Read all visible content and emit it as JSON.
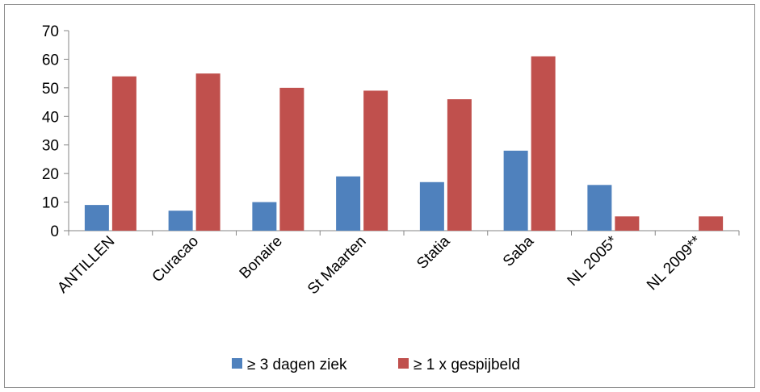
{
  "chart_data": {
    "type": "bar",
    "categories": [
      "ANTILLEN",
      "Curacao",
      "Bonaire",
      "St Maarten",
      "Statia",
      "Saba",
      "NL 2005*",
      "NL 2009**"
    ],
    "series": [
      {
        "name": "≥ 3 dagen ziek",
        "color": "#4f81bd",
        "values": [
          9,
          7,
          10,
          19,
          17,
          28,
          16,
          null
        ]
      },
      {
        "name": "≥ 1 x gespijbeld",
        "color": "#c0504d",
        "values": [
          54,
          55,
          50,
          49,
          46,
          61,
          5,
          5
        ]
      }
    ],
    "yticks": [
      "0",
      "10",
      "20",
      "30",
      "40",
      "50",
      "60",
      "70"
    ],
    "ylim": [
      0,
      70
    ],
    "legend_position": "bottom",
    "grid": false
  }
}
